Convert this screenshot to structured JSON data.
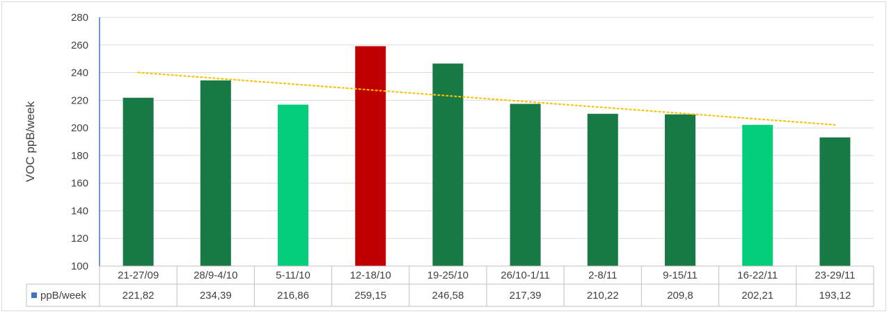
{
  "chart_data": {
    "type": "bar",
    "categories": [
      "21-27/09",
      "28/9-4/10",
      "5-11/10",
      "12-18/10",
      "19-25/10",
      "26/10-1/11",
      "2-8/11",
      "9-15/11",
      "16-22/11",
      "23-29/11"
    ],
    "value_labels": [
      "221,82",
      "234,39",
      "216,86",
      "259,15",
      "246,58",
      "217,39",
      "210,22",
      "209,8",
      "202,21",
      "193,12"
    ],
    "series": [
      {
        "name": "ppB/week",
        "values": [
          221.82,
          234.39,
          216.86,
          259.15,
          246.58,
          217.39,
          210.22,
          209.8,
          202.21,
          193.12
        ],
        "bar_colors": [
          "#177A44",
          "#177A44",
          "#05CE7B",
          "#C00000",
          "#177A44",
          "#177A44",
          "#177A44",
          "#177A44",
          "#05CE7B",
          "#177A44"
        ]
      }
    ],
    "legend_color": "#4472C4",
    "trendline": {
      "type": "linear",
      "color": "#FFC000",
      "style": "dotted"
    },
    "ylabel": "VOC ppB/week",
    "xlabel": "",
    "ylim": [
      100,
      280
    ],
    "yticks": [
      100,
      120,
      140,
      160,
      180,
      200,
      220,
      240,
      260,
      280
    ],
    "grid": true,
    "data_table": true
  }
}
